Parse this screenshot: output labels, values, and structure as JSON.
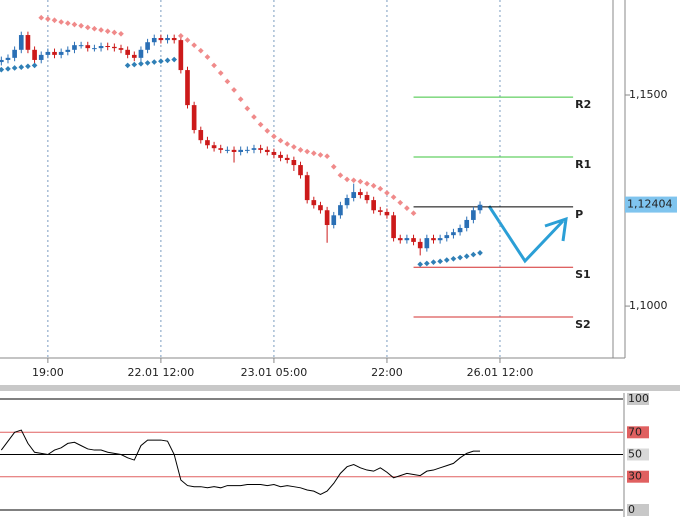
{
  "chart_data": [
    {
      "type": "candlestick",
      "xlim": [
        -0.2,
        92
      ],
      "xticks": [
        {
          "value": 7,
          "label": "19:00"
        },
        {
          "value": 24,
          "label": "22.01 12:00"
        },
        {
          "value": 41,
          "label": "23.01 05:00"
        },
        {
          "value": 58,
          "label": "22:00"
        },
        {
          "value": 75,
          "label": "26.01 12:00"
        }
      ],
      "ylim": [
        1.0877,
        1.1725
      ],
      "yticks": [
        {
          "value": 1.15,
          "label": "1,1500"
        },
        {
          "value": 1.1,
          "label": "1,1000"
        }
      ],
      "grid": true,
      "up_color": "#2a6fb5",
      "down_color": "#cc1a1a",
      "open": [
        1.1578,
        1.1583,
        1.1588,
        1.1607,
        1.1642,
        1.1607,
        1.1583,
        1.1595,
        1.1602,
        1.1595,
        1.1602,
        1.1607,
        1.1618,
        1.1618,
        1.1611,
        1.1611,
        1.1616,
        1.1614,
        1.1611,
        1.1607,
        1.1595,
        1.1588,
        1.1607,
        1.1625,
        1.1635,
        1.163,
        1.1635,
        1.163,
        1.1559,
        1.1476,
        1.1417,
        1.1393,
        1.1381,
        1.1374,
        1.137,
        1.137,
        1.1365,
        1.137,
        1.137,
        1.1374,
        1.137,
        1.1365,
        1.1358,
        1.1351,
        1.1346,
        1.1334,
        1.131,
        1.1251,
        1.1239,
        1.1227,
        1.1192,
        1.1215,
        1.1239,
        1.1256,
        1.127,
        1.1263,
        1.1251,
        1.1227,
        1.1223,
        1.1215,
        1.1161,
        1.1156,
        1.1161,
        1.1152,
        1.1137,
        1.1161,
        1.1156,
        1.1161,
        1.1168,
        1.1175,
        1.1185,
        1.1204,
        1.1227
      ],
      "high": [
        1.1591,
        1.1596,
        1.1615,
        1.165,
        1.165,
        1.1615,
        1.1603,
        1.161,
        1.161,
        1.161,
        1.1615,
        1.1626,
        1.1626,
        1.1626,
        1.1619,
        1.1624,
        1.1624,
        1.1622,
        1.1619,
        1.1615,
        1.1603,
        1.1615,
        1.1633,
        1.1643,
        1.1643,
        1.1643,
        1.1643,
        1.1638,
        1.1567,
        1.1484,
        1.1425,
        1.1401,
        1.1389,
        1.1382,
        1.1378,
        1.1378,
        1.1378,
        1.1378,
        1.1382,
        1.1382,
        1.1378,
        1.1373,
        1.1366,
        1.1359,
        1.1354,
        1.1342,
        1.1318,
        1.1259,
        1.1247,
        1.1235,
        1.1223,
        1.1247,
        1.1264,
        1.129,
        1.1278,
        1.1271,
        1.1259,
        1.1235,
        1.1231,
        1.1223,
        1.1169,
        1.1169,
        1.1169,
        1.116,
        1.1169,
        1.1169,
        1.1169,
        1.1176,
        1.1183,
        1.1193,
        1.1212,
        1.1235,
        1.1248
      ],
      "low": [
        1.157,
        1.1575,
        1.158,
        1.1599,
        1.1599,
        1.1575,
        1.1575,
        1.1587,
        1.1587,
        1.1587,
        1.1594,
        1.1599,
        1.161,
        1.1603,
        1.1603,
        1.1603,
        1.1606,
        1.1603,
        1.1599,
        1.1587,
        1.158,
        1.158,
        1.1599,
        1.1617,
        1.1622,
        1.1622,
        1.1622,
        1.1551,
        1.1468,
        1.1409,
        1.1385,
        1.1373,
        1.1366,
        1.1362,
        1.1362,
        1.134,
        1.1357,
        1.1362,
        1.1362,
        1.1362,
        1.1357,
        1.135,
        1.1343,
        1.1338,
        1.132,
        1.1302,
        1.1243,
        1.1231,
        1.1219,
        1.115,
        1.1184,
        1.1207,
        1.1231,
        1.1248,
        1.1255,
        1.1243,
        1.1219,
        1.1215,
        1.1207,
        1.1153,
        1.1148,
        1.1148,
        1.1144,
        1.112,
        1.1129,
        1.1148,
        1.1148,
        1.1153,
        1.116,
        1.1167,
        1.1177,
        1.1196,
        1.1219
      ],
      "close": [
        1.1583,
        1.1588,
        1.1607,
        1.1642,
        1.1607,
        1.1583,
        1.1595,
        1.1602,
        1.1595,
        1.1602,
        1.1607,
        1.1618,
        1.1618,
        1.1611,
        1.1611,
        1.1616,
        1.1614,
        1.1611,
        1.1607,
        1.1595,
        1.1588,
        1.1607,
        1.1625,
        1.1635,
        1.163,
        1.1635,
        1.163,
        1.1559,
        1.1476,
        1.1417,
        1.1393,
        1.1381,
        1.1374,
        1.137,
        1.137,
        1.1365,
        1.137,
        1.137,
        1.1374,
        1.137,
        1.1365,
        1.1358,
        1.1351,
        1.1346,
        1.1334,
        1.131,
        1.1251,
        1.1239,
        1.1227,
        1.1192,
        1.1215,
        1.1239,
        1.1256,
        1.127,
        1.1263,
        1.1251,
        1.1227,
        1.1223,
        1.1215,
        1.1161,
        1.1156,
        1.1161,
        1.1152,
        1.1137,
        1.1161,
        1.1156,
        1.1161,
        1.1168,
        1.1175,
        1.1185,
        1.1204,
        1.1227,
        1.124
      ],
      "sar": [
        1.156,
        1.1562,
        1.1564,
        1.1566,
        1.1568,
        1.157,
        1.1683,
        1.168,
        1.1677,
        1.1673,
        1.167,
        1.1667,
        1.1664,
        1.166,
        1.1657,
        1.1654,
        1.1651,
        1.1648,
        1.1645,
        1.157,
        1.1572,
        1.1574,
        1.1576,
        1.1578,
        1.158,
        1.1582,
        1.1584,
        1.164,
        1.163,
        1.1618,
        1.1605,
        1.159,
        1.157,
        1.1552,
        1.1532,
        1.1512,
        1.149,
        1.1468,
        1.1448,
        1.143,
        1.1415,
        1.1402,
        1.1392,
        1.1384,
        1.1377,
        1.137,
        1.1366,
        1.1362,
        1.1358,
        1.1355,
        1.133,
        1.131,
        1.13,
        1.1298,
        1.1295,
        1.129,
        1.1285,
        1.1278,
        1.1268,
        1.1258,
        1.1245,
        1.1232,
        1.122,
        1.1099,
        1.1101,
        1.1104,
        1.1106,
        1.1109,
        1.1112,
        1.1115,
        1.1118,
        1.1122,
        1.1126
      ],
      "sar_above_color": "#f08a8a",
      "sar_below_color": "#2f7fb6",
      "levels": [
        {
          "name": "R2",
          "value": 1.1495,
          "color": "#3ec43e"
        },
        {
          "name": "R1",
          "value": 1.1353,
          "color": "#3ec43e"
        },
        {
          "name": "P",
          "value": 1.1235,
          "color": "#000000"
        },
        {
          "name": "S1",
          "value": 1.1092,
          "color": "#d32f2f"
        },
        {
          "name": "S2",
          "value": 1.0974,
          "color": "#d32f2f"
        }
      ],
      "level_start": 62,
      "level_end": 86,
      "last_price": 1.12404,
      "last_price_label": "1,12404"
    },
    {
      "type": "line",
      "xlim": [
        -0.2,
        92
      ],
      "ylim": [
        -2.7,
        102.7
      ],
      "yticks": [
        100,
        70,
        50,
        30,
        0
      ],
      "ytick_colors": [
        "#000000",
        "#e06060",
        "#000000",
        "#e06060",
        "#000000"
      ],
      "ytick_bg": [
        "#c8c8c8",
        "#e06060",
        "#d8d8d8",
        "#e06060",
        "#c8c8c8"
      ],
      "color": "#000000",
      "values": [
        54,
        62,
        70,
        72,
        60,
        52,
        51,
        50,
        54,
        56,
        60,
        61,
        58,
        55,
        54,
        54,
        52,
        51,
        50,
        47,
        45,
        58,
        63,
        63,
        63,
        62,
        50,
        27,
        22,
        21,
        21,
        20,
        21,
        20,
        22,
        22,
        22,
        23,
        23,
        23,
        22,
        23,
        21,
        22,
        21,
        20,
        18,
        17,
        14,
        17,
        24,
        33,
        39,
        41,
        38,
        36,
        35,
        38,
        34,
        29,
        31,
        33,
        32,
        31,
        35,
        36,
        38,
        40,
        42,
        47,
        51,
        53,
        53
      ]
    }
  ]
}
